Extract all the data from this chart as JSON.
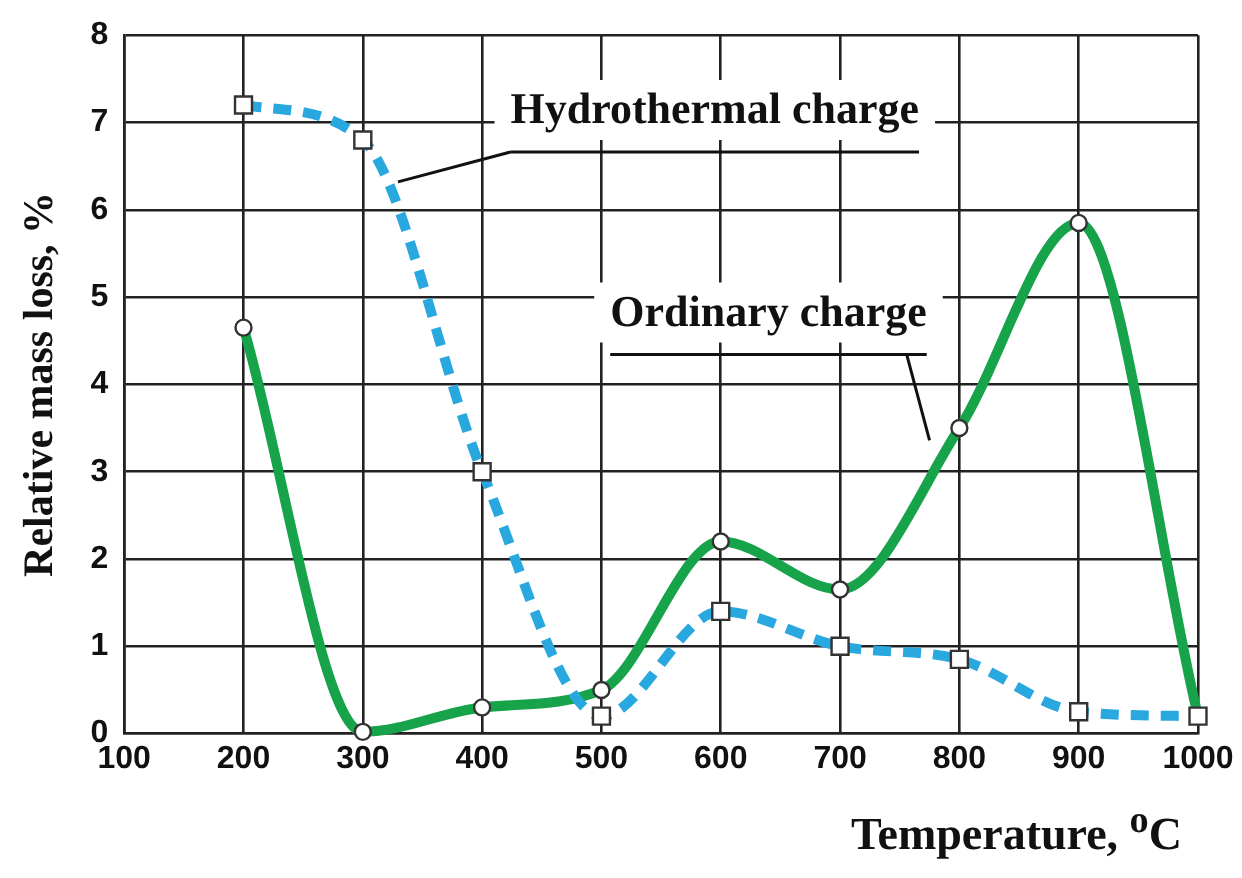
{
  "chart_data": {
    "type": "line",
    "xlabel": "Temperature, $^{o}$C",
    "ylabel": "Relative mass loss, %",
    "x": [
      200,
      300,
      400,
      500,
      600,
      700,
      800,
      900,
      1000
    ],
    "series": [
      {
        "name": "Hydrothermal charge",
        "color": "#29a8e0",
        "values": [
          7.2,
          6.8,
          3.0,
          0.2,
          1.4,
          1.0,
          0.85,
          0.25,
          0.2
        ],
        "marker": "square",
        "line_style": "dashed"
      },
      {
        "name": "Ordinary charge",
        "color": "#17a34a",
        "values": [
          4.65,
          0.02,
          0.3,
          0.5,
          2.2,
          1.65,
          3.5,
          5.85,
          0.2
        ],
        "marker": "circle",
        "line_style": "solid"
      }
    ],
    "xlim": [
      100,
      1000
    ],
    "xticks": [
      100,
      200,
      300,
      400,
      500,
      600,
      700,
      800,
      900,
      1000
    ],
    "ylim": [
      0,
      8
    ],
    "yticks": [
      0,
      1,
      2,
      3,
      4,
      5,
      6,
      7,
      8
    ],
    "grid": true,
    "legend": false
  }
}
